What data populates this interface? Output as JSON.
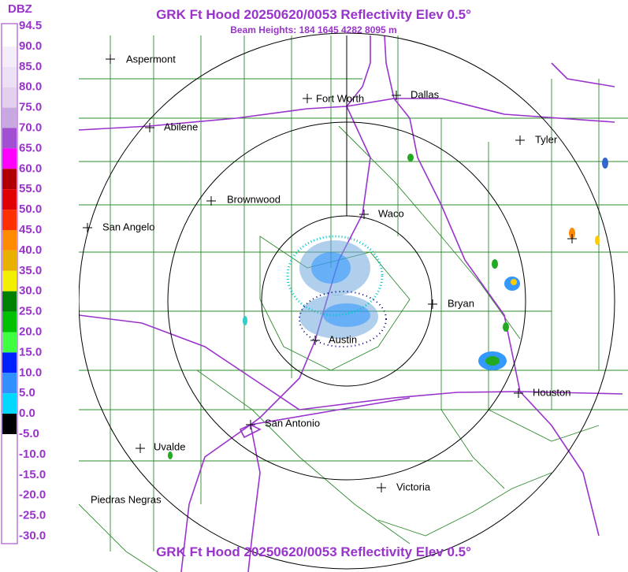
{
  "header": {
    "title": "GRK Ft Hood 20250620/0053 Reflectivity Elev 0.5°",
    "subtitle": "Beam Heights: 184 1645 4282 8095 m"
  },
  "footer": {
    "title": "GRK Ft Hood 20250620/0053 Reflectivity Elev 0.5°"
  },
  "legend": {
    "title": "DBZ",
    "labels": [
      "94.5",
      "90.0",
      "85.0",
      "80.0",
      "75.0",
      "70.0",
      "65.0",
      "60.0",
      "55.0",
      "50.0",
      "45.0",
      "40.0",
      "35.0",
      "30.0",
      "25.0",
      "20.0",
      "15.0",
      "10.0",
      "5.0",
      "0.0",
      "-5.0",
      "-10.0",
      "-15.0",
      "-20.0",
      "-25.0",
      "-30.0"
    ]
  },
  "cities": [
    "Aspermont",
    "Fort Worth",
    "Dallas",
    "Abilene",
    "Tyler",
    "Brownwood",
    "Waco",
    "San Angelo",
    "Bryan",
    "Austin",
    "Houston",
    "San Antonio",
    "Uvalde",
    "Piedras Negras",
    "Victoria"
  ]
}
